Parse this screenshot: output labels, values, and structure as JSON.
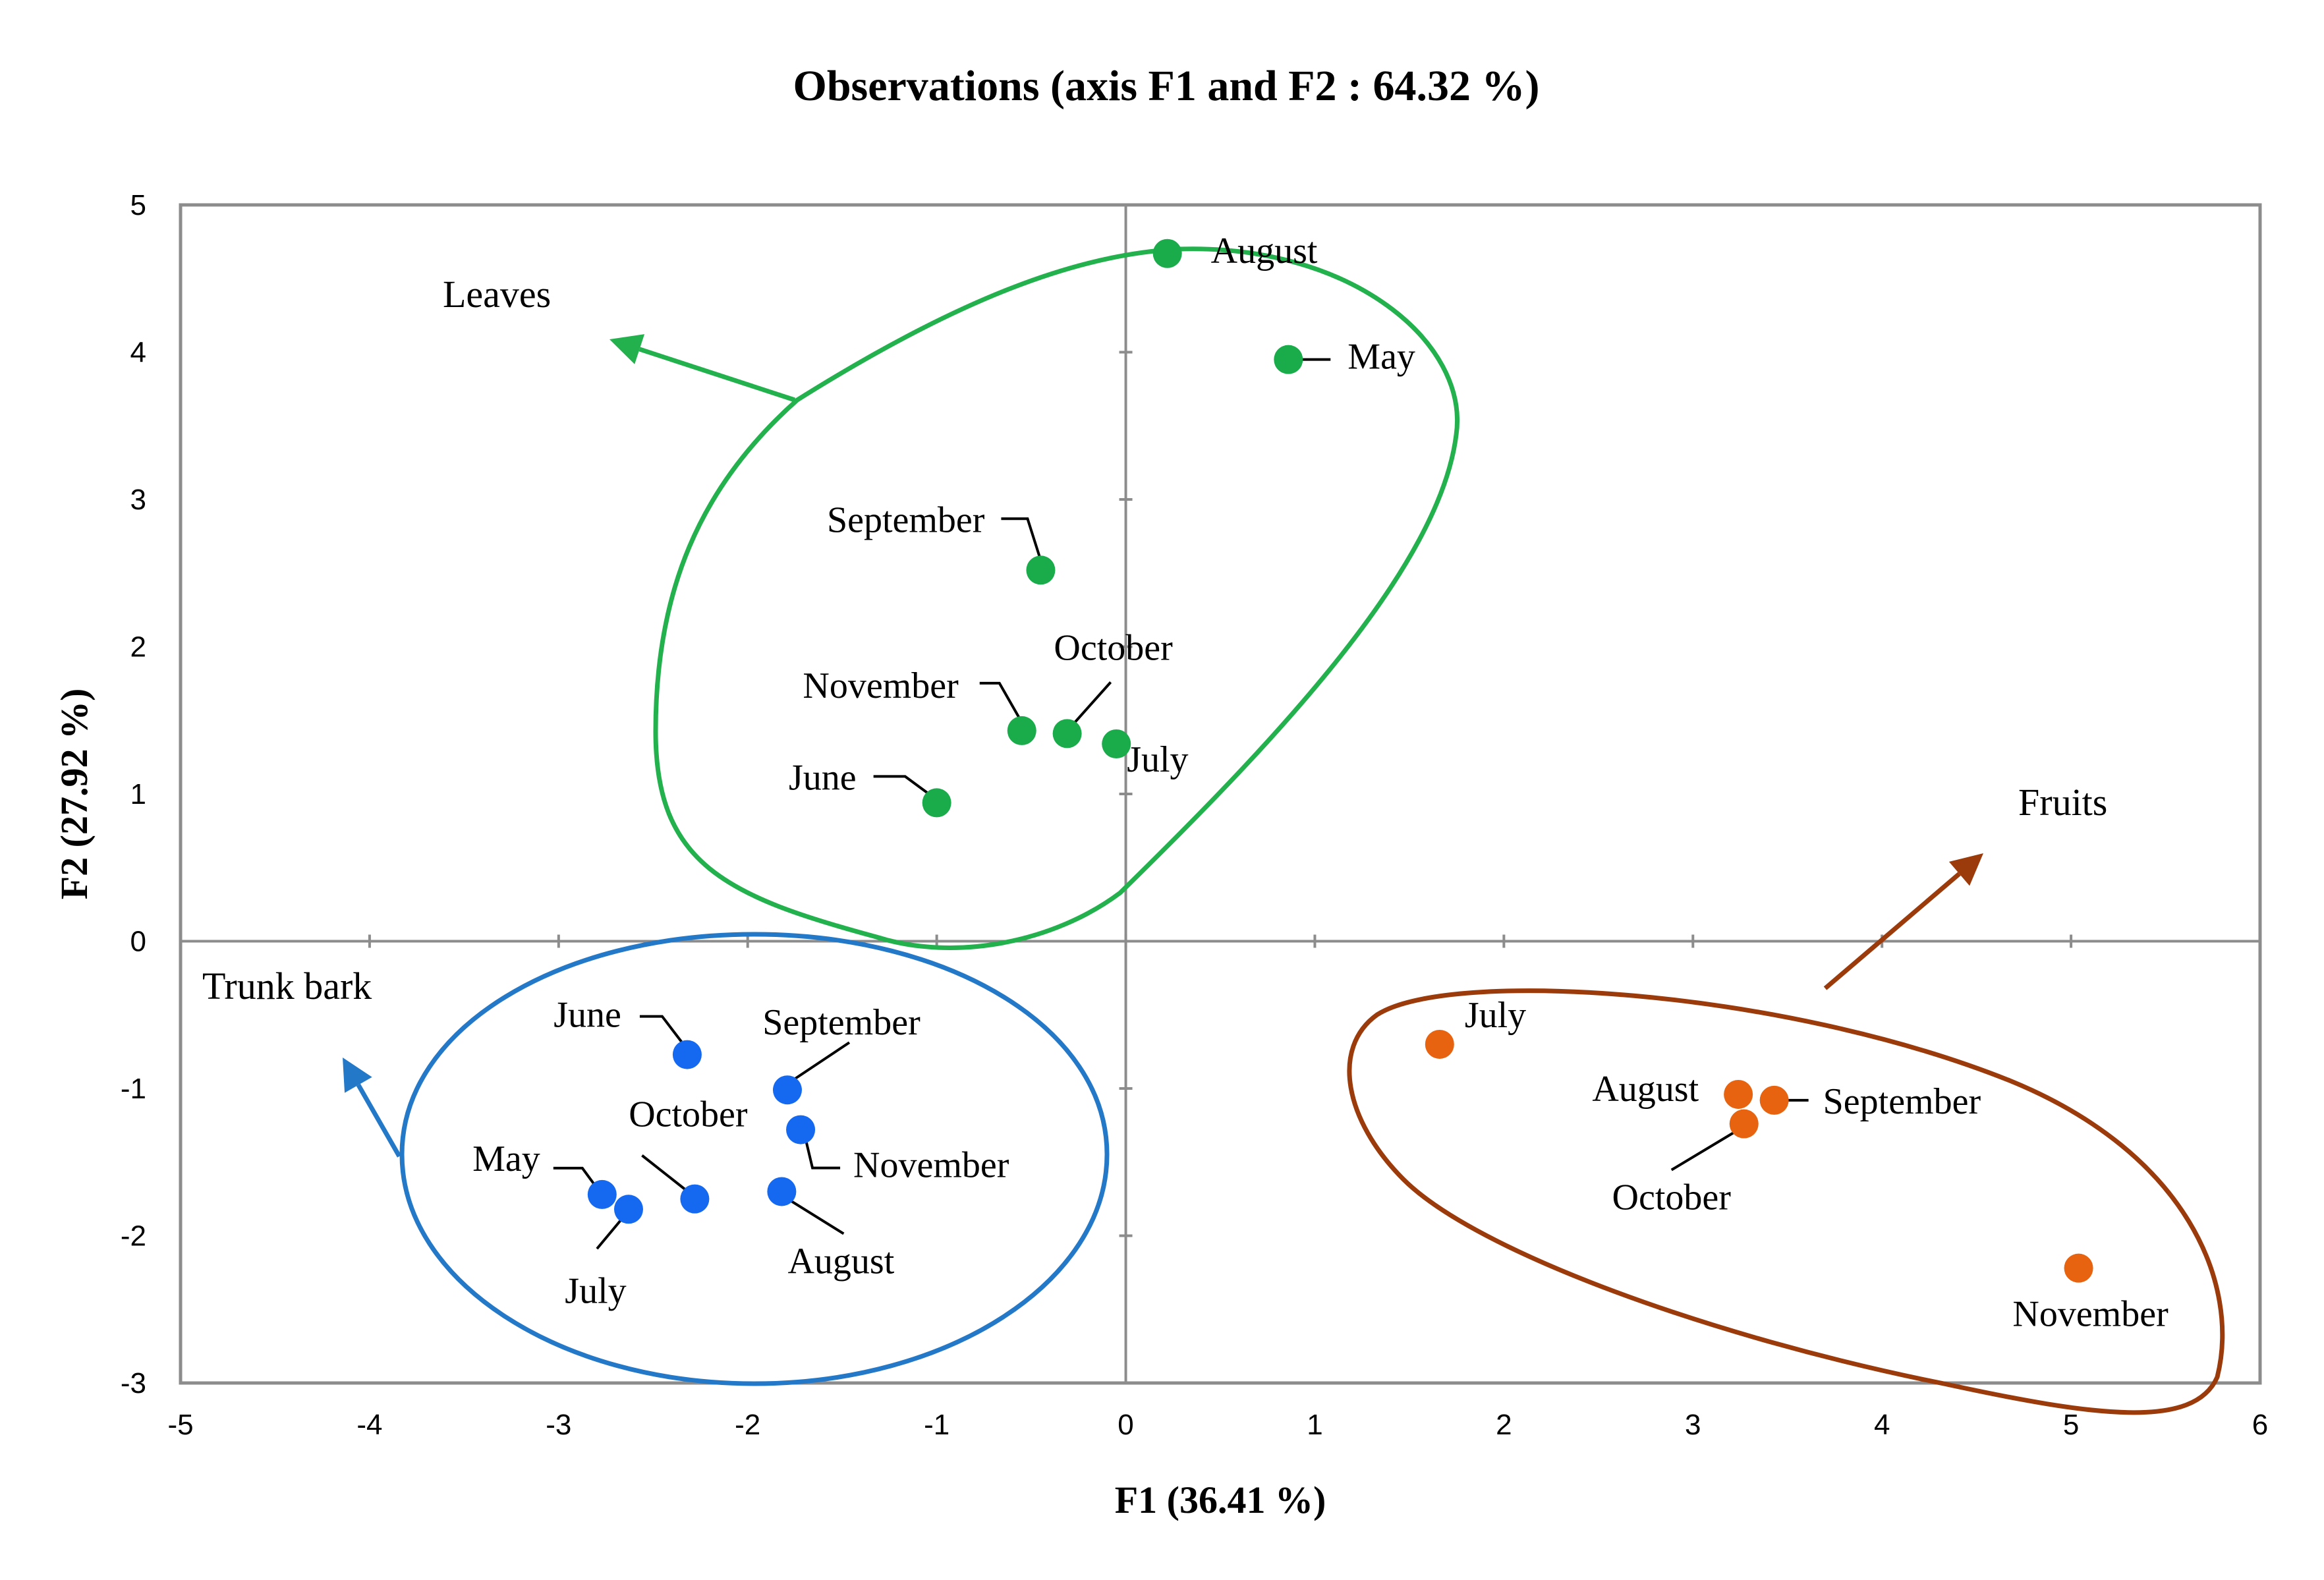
{
  "chart_data": {
    "type": "scatter",
    "title": "Observations (axis F1 and F2 : 64.32 %)",
    "xlabel": "F1 (36.41 %)",
    "ylabel": "F2 (27.92 %)",
    "xlim": [
      -5,
      6
    ],
    "ylim": [
      -3,
      5
    ],
    "xticks": [
      "-5",
      "-4",
      "-3",
      "-2",
      "-1",
      "0",
      "1",
      "2",
      "3",
      "4",
      "5",
      "6"
    ],
    "yticks": [
      "-3",
      "-2",
      "-1",
      "0",
      "1",
      "2",
      "3",
      "4",
      "5"
    ],
    "grid": false,
    "series": [
      {
        "name": "Leaves",
        "color": "#1aab4b",
        "outline_color": "#22b14c",
        "points": [
          {
            "label": "August",
            "x": 0.22,
            "y": 4.67
          },
          {
            "label": "May",
            "x": 0.86,
            "y": 3.95
          },
          {
            "label": "September",
            "x": -0.45,
            "y": 2.52
          },
          {
            "label": "October",
            "x": -0.31,
            "y": 1.41
          },
          {
            "label": "November",
            "x": -0.55,
            "y": 1.43
          },
          {
            "label": "July",
            "x": -0.05,
            "y": 1.34
          },
          {
            "label": "June",
            "x": -1.0,
            "y": 0.94
          }
        ]
      },
      {
        "name": "Trunk bark",
        "color": "#1469f0",
        "outline_color": "#2478c8",
        "points": [
          {
            "label": "June",
            "x": -2.32,
            "y": -0.77
          },
          {
            "label": "September",
            "x": -1.79,
            "y": -1.01
          },
          {
            "label": "November",
            "x": -1.72,
            "y": -1.28
          },
          {
            "label": "October",
            "x": -2.28,
            "y": -1.75
          },
          {
            "label": "May",
            "x": -2.77,
            "y": -1.72
          },
          {
            "label": "July",
            "x": -2.63,
            "y": -1.82
          },
          {
            "label": "August",
            "x": -1.82,
            "y": -1.7
          }
        ]
      },
      {
        "name": "Fruits",
        "color": "#e8630f",
        "outline_color": "#9b3a0a",
        "points": [
          {
            "label": "July",
            "x": 1.66,
            "y": -0.7
          },
          {
            "label": "August",
            "x": 3.24,
            "y": -1.04
          },
          {
            "label": "September",
            "x": 3.43,
            "y": -1.08
          },
          {
            "label": "October",
            "x": 3.27,
            "y": -1.24
          },
          {
            "label": "November",
            "x": 5.04,
            "y": -2.22
          }
        ]
      }
    ]
  }
}
